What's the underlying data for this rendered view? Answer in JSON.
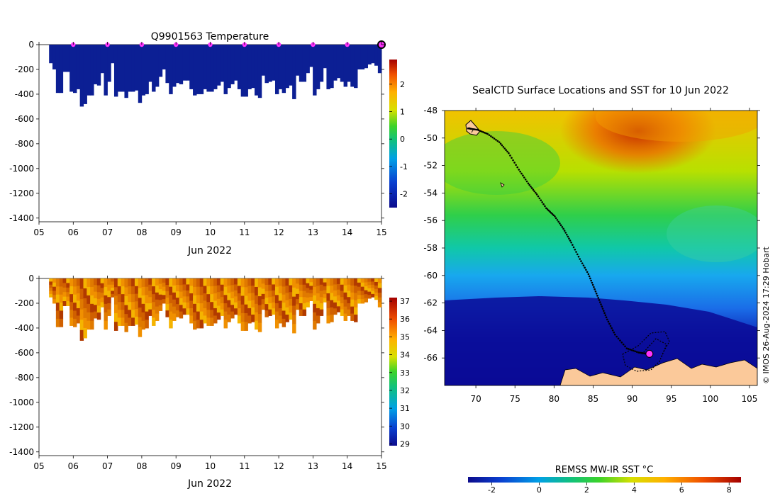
{
  "colors": {
    "temp_fill": "#0c1f94",
    "salinity_light": "#f5b400",
    "salinity_mid": "#e07a00",
    "salinity_dark": "#b13a00",
    "land": "#fbc99a",
    "marker": "#ff33ff"
  },
  "chart_data": [
    {
      "type": "heatmap",
      "id": "temperature",
      "title": "Q9901563  Temperature",
      "xlabel": "Jun 2022",
      "x_ticks": [
        "05",
        "06",
        "07",
        "08",
        "09",
        "10",
        "11",
        "12",
        "13",
        "14",
        "15"
      ],
      "x_range": [
        5,
        15
      ],
      "ylim": [
        -1430,
        0
      ],
      "y_ticks": [
        0,
        -200,
        -400,
        -600,
        -800,
        -1000,
        -1200,
        -1400
      ],
      "profile_day": [
        5.35,
        5.45,
        5.55,
        5.65,
        5.75,
        5.85,
        5.95,
        6.05,
        6.15,
        6.25,
        6.35,
        6.45,
        6.55,
        6.65,
        6.75,
        6.85,
        6.95,
        7.05,
        7.15,
        7.25,
        7.35,
        7.45,
        7.55,
        7.65,
        7.75,
        7.85,
        7.95,
        8.05,
        8.15,
        8.25,
        8.35,
        8.45,
        8.55,
        8.65,
        8.75,
        8.85,
        8.95,
        9.05,
        9.15,
        9.25,
        9.35,
        9.45,
        9.55,
        9.65,
        9.75,
        9.85,
        9.95,
        10.05,
        10.15,
        10.25,
        10.35,
        10.45,
        10.55,
        10.65,
        10.75,
        10.85,
        10.95,
        11.05,
        11.15,
        11.25,
        11.35,
        11.45,
        11.55,
        11.65,
        11.75,
        11.85,
        11.95,
        12.05,
        12.15,
        12.25,
        12.35,
        12.45,
        12.55,
        12.65,
        12.75,
        12.85,
        12.95,
        13.05,
        13.15,
        13.25,
        13.35,
        13.45,
        13.55,
        13.65,
        13.75,
        13.85,
        13.95,
        14.05,
        14.15,
        14.25,
        14.35,
        14.45,
        14.55,
        14.65,
        14.75,
        14.85,
        14.95
      ],
      "profile_depth": [
        150,
        200,
        390,
        390,
        220,
        220,
        380,
        390,
        360,
        500,
        480,
        410,
        410,
        320,
        330,
        230,
        410,
        300,
        150,
        420,
        380,
        380,
        430,
        380,
        380,
        370,
        470,
        410,
        400,
        300,
        380,
        340,
        260,
        200,
        310,
        400,
        340,
        310,
        320,
        290,
        290,
        360,
        410,
        400,
        400,
        360,
        380,
        380,
        360,
        330,
        300,
        400,
        350,
        320,
        290,
        360,
        420,
        420,
        360,
        350,
        410,
        430,
        250,
        310,
        300,
        290,
        400,
        360,
        390,
        350,
        330,
        440,
        250,
        300,
        300,
        230,
        180,
        410,
        360,
        300,
        190,
        360,
        350,
        290,
        270,
        300,
        340,
        300,
        340,
        350,
        200,
        200,
        190,
        160,
        150,
        170,
        230
      ],
      "surface_markers": [
        6,
        7,
        8,
        9,
        10,
        11,
        12,
        13,
        14,
        15
      ],
      "colorbar": {
        "ticks": [
          2,
          1,
          0,
          -1,
          -2
        ],
        "range": [
          -2.5,
          2.9
        ]
      }
    },
    {
      "type": "heatmap",
      "id": "salinity",
      "title": "",
      "xlabel": "Jun 2022",
      "x_ticks": [
        "05",
        "06",
        "07",
        "08",
        "09",
        "10",
        "11",
        "12",
        "13",
        "14",
        "15"
      ],
      "x_range": [
        5,
        15
      ],
      "ylim": [
        -1430,
        0
      ],
      "y_ticks": [
        0,
        -200,
        -400,
        -600,
        -800,
        -1000,
        -1200,
        -1400
      ],
      "colorbar": {
        "ticks": [
          37,
          36,
          35,
          34,
          33,
          32,
          31,
          30,
          29
        ],
        "range": [
          28.9,
          37.2
        ]
      }
    },
    {
      "type": "heatmap",
      "id": "sst_map",
      "title": "SealCTD Surface Locations and SST for 10 Jun 2022",
      "x_ticks": [
        "70",
        "75",
        "80",
        "85",
        "90",
        "95",
        "100",
        "105"
      ],
      "x_range": [
        66,
        106
      ],
      "y_ticks": [
        "-48",
        "-50",
        "-52",
        "-54",
        "-56",
        "-58",
        "-60",
        "-62",
        "-64",
        "-66"
      ],
      "y_range": [
        -68,
        -48
      ],
      "track": [
        [
          69,
          -49.3
        ],
        [
          70.2,
          -49.4
        ],
        [
          71.5,
          -49.7
        ],
        [
          73,
          -50.3
        ],
        [
          74.2,
          -51.1
        ],
        [
          75.5,
          -52.3
        ],
        [
          76.7,
          -53.3
        ],
        [
          77.8,
          -54.1
        ],
        [
          79,
          -55.1
        ],
        [
          80.1,
          -55.7
        ],
        [
          81.2,
          -56.6
        ],
        [
          82.2,
          -57.6
        ],
        [
          83.3,
          -58.8
        ],
        [
          84.4,
          -59.9
        ],
        [
          85.2,
          -61
        ],
        [
          86,
          -62.1
        ],
        [
          86.8,
          -63.2
        ],
        [
          87.8,
          -64.3
        ],
        [
          89.3,
          -65.3
        ],
        [
          90.8,
          -65.6
        ],
        [
          92,
          -65.7
        ]
      ],
      "current_position": [
        92.2,
        -65.7
      ],
      "colorbar": {
        "label": "REMSS MW-IR SST °C",
        "ticks": [
          "-2",
          "0",
          "2",
          "4",
          "6",
          "8"
        ],
        "range": [
          -3,
          8.5
        ]
      },
      "credit": "© IMOS 26-Aug-2024 17:29 Hobart"
    }
  ]
}
